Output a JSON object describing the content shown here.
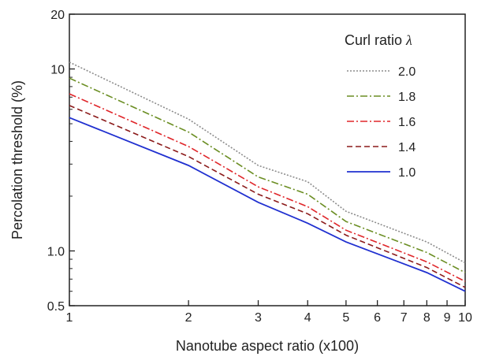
{
  "chart_data": {
    "type": "line",
    "xlabel": "Nanotube aspect ratio (x100)",
    "ylabel": "Percolation threshold (%)",
    "x_scale": "log",
    "y_scale": "log",
    "xlim": [
      1,
      10
    ],
    "ylim": [
      0.5,
      20
    ],
    "x_ticks": [
      1,
      2,
      3,
      4,
      5,
      6,
      7,
      8,
      9,
      10
    ],
    "x_tick_labels": [
      "1",
      "2",
      "3",
      "4",
      "5",
      "6",
      "7",
      "8",
      "9",
      "10"
    ],
    "y_ticks": [
      0.5,
      1.0,
      10,
      20
    ],
    "y_tick_labels": [
      "0.5",
      "1.0",
      "10",
      "20"
    ],
    "grid": false,
    "legend": {
      "title": "Curl ratio",
      "title_symbol": "λ",
      "placement": "top-right"
    },
    "x": [
      1,
      2,
      3,
      4,
      5,
      8,
      10
    ],
    "series": [
      {
        "name": "2.0",
        "color": "#8c8c8c",
        "dash": "dotted",
        "values": [
          10.9,
          5.3,
          2.95,
          2.4,
          1.65,
          1.12,
          0.86
        ]
      },
      {
        "name": "1.8",
        "color": "#6b8e23",
        "dash": "dashdot",
        "values": [
          8.9,
          4.5,
          2.55,
          2.05,
          1.45,
          0.98,
          0.76
        ]
      },
      {
        "name": "1.6",
        "color": "#e0262a",
        "dash": "dashdot",
        "values": [
          7.3,
          3.75,
          2.25,
          1.75,
          1.3,
          0.87,
          0.68
        ]
      },
      {
        "name": "1.4",
        "color": "#8b1a1a",
        "dash": "dashed",
        "values": [
          6.3,
          3.3,
          2.05,
          1.6,
          1.22,
          0.81,
          0.63
        ]
      },
      {
        "name": "1.0",
        "color": "#2030d0",
        "dash": "solid",
        "values": [
          5.4,
          2.95,
          1.85,
          1.42,
          1.12,
          0.76,
          0.6
        ]
      }
    ]
  }
}
